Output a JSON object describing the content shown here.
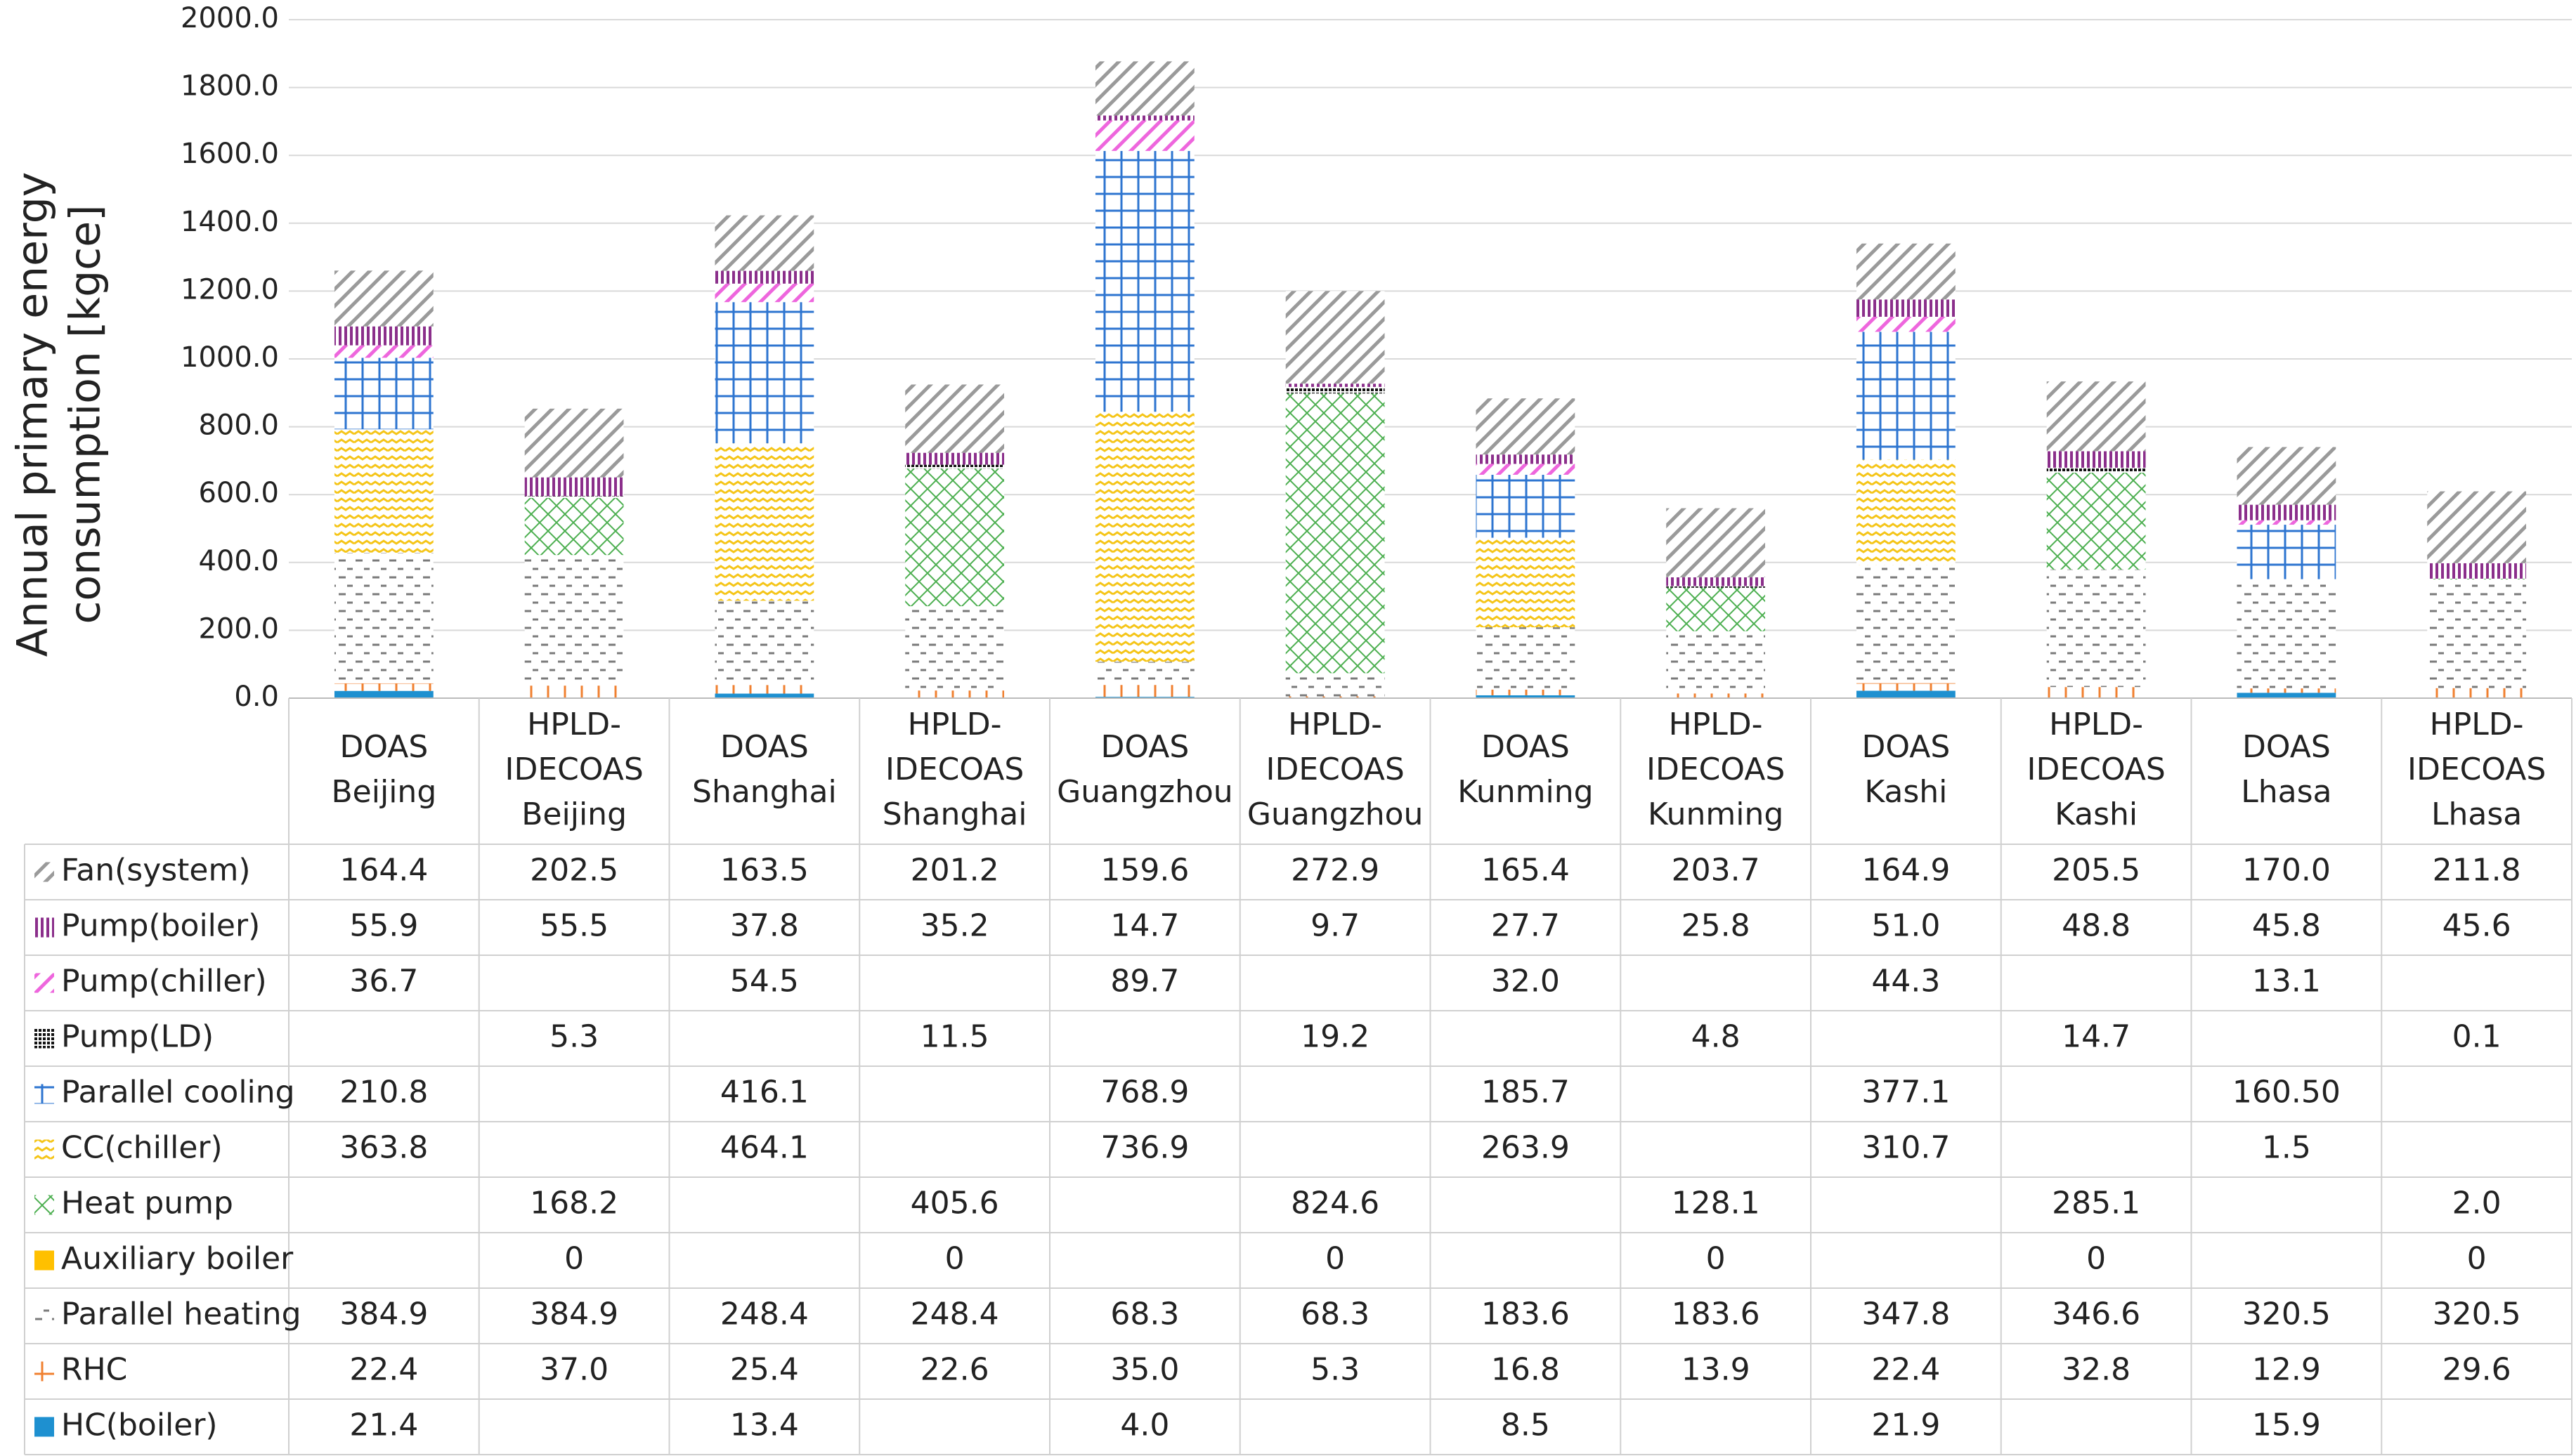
{
  "chart_data": {
    "type": "bar",
    "stacked": true,
    "y_label": [
      "Annual primary energy",
      "consumption [kgce]"
    ],
    "categories": [
      [
        "DOAS",
        "Beijing"
      ],
      [
        "HPLD-",
        "IDECOAS",
        "Beijing"
      ],
      [
        "DOAS",
        "Shanghai"
      ],
      [
        "HPLD-",
        "IDECOAS",
        "Shanghai"
      ],
      [
        "DOAS",
        "Guangzhou"
      ],
      [
        "HPLD-",
        "IDECOAS",
        "Guangzhou"
      ],
      [
        "DOAS",
        "Kunming"
      ],
      [
        "HPLD-",
        "IDECOAS",
        "Kunming"
      ],
      [
        "DOAS",
        "Kashi"
      ],
      [
        "HPLD-",
        "IDECOAS",
        "Kashi"
      ],
      [
        "DOAS",
        "Lhasa"
      ],
      [
        "HPLD-",
        "IDECOAS",
        "Lhasa"
      ]
    ],
    "ylim": [
      0,
      2000
    ],
    "yticks": [
      {
        "value": 0,
        "label": "0.0"
      },
      {
        "value": 200,
        "label": "200.0"
      },
      {
        "value": 400,
        "label": "400.0"
      },
      {
        "value": 600,
        "label": "600.0"
      },
      {
        "value": 800,
        "label": "800.0"
      },
      {
        "value": 1000,
        "label": "1000.0"
      },
      {
        "value": 1200,
        "label": "1200.0"
      },
      {
        "value": 1400,
        "label": "1400.0"
      },
      {
        "value": 1600,
        "label": "1600.0"
      },
      {
        "value": 1800,
        "label": "1800.0"
      },
      {
        "value": 2000,
        "label": "2000.0"
      }
    ],
    "grid": true,
    "series": [
      {
        "name": "Fan(system)",
        "color": "#9a9a9a",
        "pattern": "diagonal",
        "values": [
          164.4,
          202.5,
          163.5,
          201.2,
          159.6,
          272.9,
          165.4,
          203.7,
          164.9,
          205.5,
          170.0,
          211.8
        ],
        "value_labels": [
          "164.4",
          "202.5",
          "163.5",
          "201.2",
          "159.6",
          "272.9",
          "165.4",
          "203.7",
          "164.9",
          "205.5",
          "170.0",
          "211.8"
        ]
      },
      {
        "name": "Pump(boiler)",
        "color": "#8b2f8b",
        "pattern": "vertical",
        "values": [
          55.9,
          55.5,
          37.8,
          35.2,
          14.7,
          9.7,
          27.7,
          25.8,
          51.0,
          48.8,
          45.8,
          45.6
        ],
        "value_labels": [
          "55.9",
          "55.5",
          "37.8",
          "35.2",
          "14.7",
          "9.7",
          "27.7",
          "25.8",
          "51.0",
          "48.8",
          "45.8",
          "45.6"
        ]
      },
      {
        "name": "Pump(chiller)",
        "color": "#ee66dd",
        "pattern": "diagonal-dense",
        "values": [
          36.7,
          null,
          54.5,
          null,
          89.7,
          null,
          32.0,
          null,
          44.3,
          null,
          13.1,
          null
        ],
        "value_labels": [
          "36.7",
          null,
          "54.5",
          null,
          "89.7",
          null,
          "32.0",
          null,
          "44.3",
          null,
          "13.1",
          null
        ]
      },
      {
        "name": "Pump(LD)",
        "color": "#111111",
        "pattern": "dots",
        "values": [
          null,
          5.3,
          null,
          11.5,
          null,
          19.2,
          null,
          4.8,
          null,
          14.7,
          null,
          0.1
        ],
        "value_labels": [
          null,
          "5.3",
          null,
          "11.5",
          null,
          "19.2",
          null,
          "4.8",
          null,
          "14.7",
          null,
          "0.1"
        ]
      },
      {
        "name": "Parallel cooling",
        "color": "#2e75d0",
        "pattern": "grid",
        "values": [
          210.8,
          null,
          416.1,
          null,
          768.9,
          null,
          185.7,
          null,
          377.1,
          null,
          160.5,
          null
        ],
        "value_labels": [
          "210.8",
          null,
          "416.1",
          null,
          "768.9",
          null,
          "185.7",
          null,
          "377.1",
          null,
          "160.50",
          null
        ]
      },
      {
        "name": "CC(chiller)",
        "color": "#f5c518",
        "pattern": "zigzag",
        "values": [
          363.8,
          null,
          464.1,
          null,
          736.9,
          null,
          263.9,
          null,
          310.7,
          null,
          1.5,
          null
        ],
        "value_labels": [
          "363.8",
          null,
          "464.1",
          null,
          "736.9",
          null,
          "263.9",
          null,
          "310.7",
          null,
          "1.5",
          null
        ]
      },
      {
        "name": "Heat pump",
        "color": "#4caf50",
        "pattern": "crosshatch",
        "values": [
          null,
          168.2,
          null,
          405.6,
          null,
          824.6,
          null,
          128.1,
          null,
          285.1,
          null,
          2.0
        ],
        "value_labels": [
          null,
          "168.2",
          null,
          "405.6",
          null,
          "824.6",
          null,
          "128.1",
          null,
          "285.1",
          null,
          "2.0"
        ]
      },
      {
        "name": "Auxiliary boiler",
        "color": "#ffc000",
        "pattern": "solid",
        "values": [
          null,
          0,
          null,
          0,
          null,
          0,
          null,
          0,
          null,
          0,
          null,
          0
        ],
        "value_labels": [
          null,
          "0",
          null,
          "0",
          null,
          "0",
          null,
          "0",
          null,
          "0",
          null,
          "0"
        ]
      },
      {
        "name": "Parallel heating",
        "color": "#7a7a7a",
        "pattern": "dashes",
        "values": [
          384.9,
          384.9,
          248.4,
          248.4,
          68.3,
          68.3,
          183.6,
          183.6,
          347.8,
          346.6,
          320.5,
          320.5
        ],
        "value_labels": [
          "384.9",
          "384.9",
          "248.4",
          "248.4",
          "68.3",
          "68.3",
          "183.6",
          "183.6",
          "347.8",
          "346.6",
          "320.5",
          "320.5"
        ]
      },
      {
        "name": "RHC",
        "color": "#f08030",
        "pattern": "grid",
        "values": [
          22.4,
          37.0,
          25.4,
          22.6,
          35.0,
          5.3,
          16.8,
          13.9,
          22.4,
          32.8,
          12.9,
          29.6
        ],
        "value_labels": [
          "22.4",
          "37.0",
          "25.4",
          "22.6",
          "35.0",
          "5.3",
          "16.8",
          "13.9",
          "22.4",
          "32.8",
          "12.9",
          "29.6"
        ]
      },
      {
        "name": "HC(boiler)",
        "color": "#1e90d0",
        "pattern": "solid",
        "values": [
          21.4,
          null,
          13.4,
          null,
          4.0,
          null,
          8.5,
          null,
          21.9,
          null,
          15.9,
          null
        ],
        "value_labels": [
          "21.4",
          null,
          "13.4",
          null,
          "4.0",
          null,
          "8.5",
          null,
          "21.9",
          null,
          "15.9",
          null
        ]
      }
    ]
  }
}
